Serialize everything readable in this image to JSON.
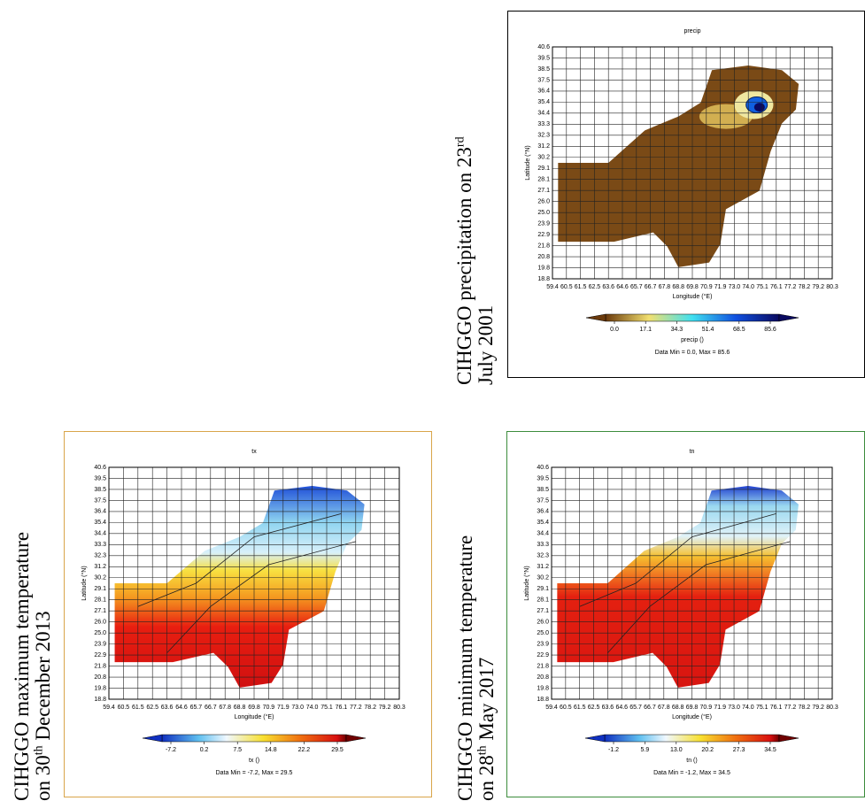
{
  "axes": {
    "lat_label": "Latitude (°N)",
    "lon_label": "Longitude (°E)",
    "lat_ticks": [
      "18.8",
      "19.8",
      "20.8",
      "21.8",
      "22.9",
      "23.9",
      "25.0",
      "26.0",
      "27.1",
      "28.1",
      "29.1",
      "30.2",
      "31.2",
      "32.3",
      "33.3",
      "34.4",
      "35.4",
      "36.4",
      "37.5",
      "38.5",
      "39.5",
      "40.6"
    ],
    "lon_ticks": [
      "59.4",
      "60.5",
      "61.5",
      "62.5",
      "63.6",
      "64.6",
      "65.7",
      "66.7",
      "67.8",
      "68.8",
      "69.8",
      "70.9",
      "71.9",
      "73.0",
      "74.0",
      "75.1",
      "76.1",
      "77.2",
      "78.2",
      "79.2",
      "80.3"
    ]
  },
  "panels": [
    {
      "title": "precip",
      "colorbar_ticks": [
        "0.0",
        "17.1",
        "34.3",
        "51.4",
        "68.5",
        "85.6"
      ],
      "colorbar_label": "precip ()",
      "data_range": "Data Min = 0.0, Max = 85.6",
      "caption": [
        [
          {
            "text": "CIHGGO precipitation on 23"
          },
          {
            "sup": "rd"
          }
        ],
        [
          {
            "text": "July 2001"
          }
        ]
      ]
    },
    {
      "title": "tx",
      "colorbar_ticks": [
        "-7.2",
        "0.2",
        "7.5",
        "14.8",
        "22.2",
        "29.5"
      ],
      "colorbar_label": "tx ()",
      "data_range": "Data Min = -7.2, Max = 29.5",
      "caption": [
        [
          {
            "text": "CIHGGO maximum temperature"
          }
        ],
        [
          {
            "text": "on 30"
          },
          {
            "sup": "th"
          },
          {
            "text": " December 2013"
          }
        ]
      ]
    },
    {
      "title": "tn",
      "colorbar_ticks": [
        "-1.2",
        "5.9",
        "13.0",
        "20.2",
        "27.3",
        "34.5"
      ],
      "colorbar_label": "tn ()",
      "data_range": "Data Min = -1.2, Max = 34.5",
      "caption": [
        [
          {
            "text": "CIHGGO minimum temperature"
          }
        ],
        [
          {
            "text": "on 28"
          },
          {
            "sup": "th"
          },
          {
            "text": " May 2017"
          }
        ]
      ]
    }
  ]
}
